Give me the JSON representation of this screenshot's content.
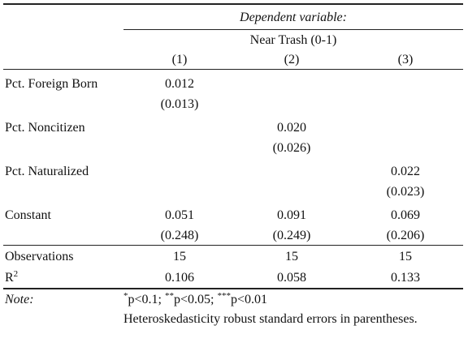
{
  "table": {
    "dependent_variable_label": "Dependent variable:",
    "dependent_variable_name": "Near Trash (0-1)",
    "model_labels": [
      "(1)",
      "(2)",
      "(3)"
    ],
    "rows": [
      {
        "label": "Pct. Foreign Born",
        "coef": [
          "0.012",
          "",
          ""
        ],
        "se": [
          "(0.013)",
          "",
          ""
        ]
      },
      {
        "label": "Pct. Noncitizen",
        "coef": [
          "",
          "0.020",
          ""
        ],
        "se": [
          "",
          "(0.026)",
          ""
        ]
      },
      {
        "label": "Pct. Naturalized",
        "coef": [
          "",
          "",
          "0.022"
        ],
        "se": [
          "",
          "",
          "(0.023)"
        ]
      },
      {
        "label": "Constant",
        "coef": [
          "0.051",
          "0.091",
          "0.069"
        ],
        "se": [
          "(0.248)",
          "(0.249)",
          "(0.206)"
        ]
      }
    ],
    "stats": [
      {
        "label": "Observations",
        "values": [
          "15",
          "15",
          "15"
        ]
      },
      {
        "label": "R",
        "label_sup": "2",
        "values": [
          "0.106",
          "0.058",
          "0.133"
        ]
      }
    ],
    "note_label": "Note:",
    "significance": [
      {
        "stars": "*",
        "text": "p<0.1; "
      },
      {
        "stars": "**",
        "text": "p<0.05; "
      },
      {
        "stars": "***",
        "text": "p<0.01"
      }
    ],
    "note_text": "Heteroskedasticity robust standard errors in parentheses."
  }
}
